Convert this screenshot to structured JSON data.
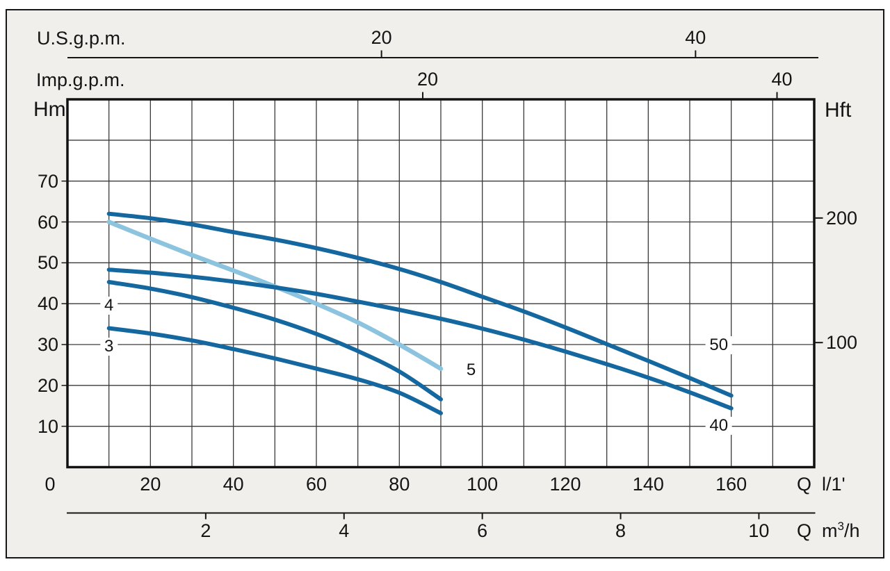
{
  "panel": {
    "background": "#f0efec",
    "plot_background": "#ffffff",
    "border_color": "#161616",
    "grid_color": "#3a3a3a",
    "curve_dark": "#15689f",
    "curve_light": "#8cc3df"
  },
  "chart_data": {
    "type": "line",
    "title": "",
    "grid": true,
    "axes": {
      "us_gpm": {
        "label": "U.S.g.p.m.",
        "ticks": [
          20,
          40
        ]
      },
      "imp_gpm": {
        "label": "Imp.g.p.m.",
        "ticks": [
          20,
          40
        ]
      },
      "hm": {
        "label": "Hm",
        "ticks": [
          10,
          20,
          30,
          40,
          50,
          60,
          70
        ],
        "range": [
          0,
          90
        ]
      },
      "hft": {
        "label": "Hft",
        "ticks": [
          100,
          200
        ]
      },
      "l_per_min": {
        "q": "Q",
        "unit": "l/1'",
        "ticks": [
          0,
          20,
          40,
          60,
          80,
          100,
          120,
          140,
          160
        ],
        "range": [
          0,
          180
        ]
      },
      "m3_per_h": {
        "q": "Q",
        "m": "m",
        "sup": "3",
        "suffix": "/h",
        "ticks": [
          2,
          4,
          6,
          8,
          10
        ]
      }
    },
    "series": [
      {
        "name": "50",
        "color": "#15689f",
        "width": 6,
        "points": [
          [
            10,
            62
          ],
          [
            20,
            60.9
          ],
          [
            30,
            59.4
          ],
          [
            40,
            57.5
          ],
          [
            50,
            55.7
          ],
          [
            60,
            53.6
          ],
          [
            70,
            51.2
          ],
          [
            80,
            48.5
          ],
          [
            90,
            45.3
          ],
          [
            100,
            41.7
          ],
          [
            110,
            38.1
          ],
          [
            120,
            34.2
          ],
          [
            130,
            30.1
          ],
          [
            140,
            26.0
          ],
          [
            150,
            21.8
          ],
          [
            160,
            17.5
          ]
        ]
      },
      {
        "name": "40",
        "color": "#15689f",
        "width": 6,
        "points": [
          [
            10,
            48.3
          ],
          [
            20,
            47.6
          ],
          [
            30,
            46.6
          ],
          [
            40,
            45.4
          ],
          [
            50,
            44.0
          ],
          [
            60,
            42.4
          ],
          [
            70,
            40.5
          ],
          [
            80,
            38.5
          ],
          [
            90,
            36.3
          ],
          [
            100,
            33.9
          ],
          [
            110,
            31.2
          ],
          [
            120,
            28.3
          ],
          [
            130,
            25.2
          ],
          [
            140,
            21.9
          ],
          [
            150,
            18.3
          ],
          [
            160,
            14.4
          ]
        ]
      },
      {
        "name": "5",
        "color": "#8cc3df",
        "width": 6.5,
        "points": [
          [
            10,
            60
          ],
          [
            20,
            55.9
          ],
          [
            30,
            51.9
          ],
          [
            40,
            48.1
          ],
          [
            50,
            44.2
          ],
          [
            60,
            40.0
          ],
          [
            70,
            35.4
          ],
          [
            80,
            30.0
          ],
          [
            90,
            24.1
          ]
        ]
      },
      {
        "name": "4",
        "color": "#15689f",
        "width": 6,
        "points": [
          [
            10,
            45.3
          ],
          [
            20,
            43.7
          ],
          [
            30,
            41.6
          ],
          [
            40,
            39.0
          ],
          [
            50,
            36.1
          ],
          [
            60,
            32.6
          ],
          [
            70,
            28.4
          ],
          [
            80,
            23.4
          ],
          [
            90,
            16.6
          ]
        ]
      },
      {
        "name": "3",
        "color": "#15689f",
        "width": 6,
        "points": [
          [
            10,
            34.0
          ],
          [
            20,
            32.7
          ],
          [
            30,
            31.0
          ],
          [
            40,
            28.9
          ],
          [
            50,
            26.6
          ],
          [
            60,
            24.1
          ],
          [
            70,
            21.5
          ],
          [
            80,
            18.2
          ],
          [
            90,
            13.2
          ]
        ]
      }
    ],
    "series_labels": [
      {
        "text": "4",
        "q": 10.0,
        "hm": 39.5
      },
      {
        "text": "3",
        "q": 10.0,
        "hm": 29.5
      },
      {
        "text": "5",
        "q": 97.3,
        "hm": 23.7
      },
      {
        "text": "50",
        "q": 157.0,
        "hm": 29.8
      },
      {
        "text": "40",
        "q": 157.0,
        "hm": 10.1
      }
    ]
  }
}
